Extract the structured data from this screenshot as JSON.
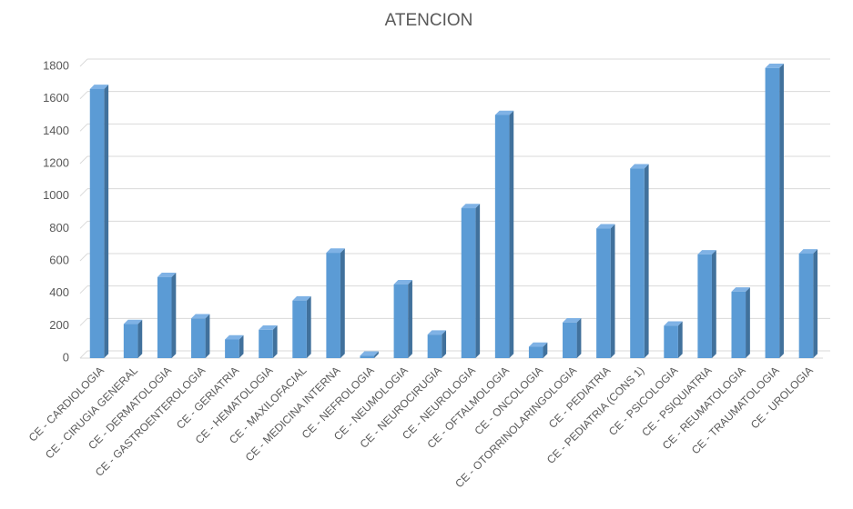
{
  "chart_data": {
    "type": "bar3d",
    "title": "ATENCION",
    "categories": [
      "CE - CARDIOLOGIA",
      "CE - CIRUGIA GENERAL",
      "CE - DERMATOLOGIA",
      "CE - GASTROENTEROLOGIA",
      "CE - GERIATRIA",
      "CE - HEMATOLOGIA",
      "CE - MAXILOFACIAL",
      "CE - MEDICINA INTERNA",
      "CE - NEFROLOGIA",
      "CE - NEUMOLOGIA",
      "CE - NEUROCIRUGIA",
      "CE - NEUROLOGIA",
      "CE - OFTALMOLOGIA",
      "CE - ONCOLOGIA",
      "CE - OTORRINOLARINGOLOGIA",
      "CE - PEDIATRIA",
      "CE - PEDIATRIA (CONS 1)",
      "CE - PSICOLOGIA",
      "CE - PSIQUIATRIA",
      "CE - REUMATOLOGIA",
      "CE - TRAUMATOLOGIA",
      "CE - UROLOGIA"
    ],
    "values": [
      1660,
      210,
      500,
      245,
      115,
      175,
      355,
      650,
      15,
      455,
      145,
      925,
      1500,
      70,
      220,
      800,
      1170,
      200,
      640,
      410,
      1790,
      645
    ],
    "color": "#5b9bd5",
    "ylim": [
      0,
      1800
    ],
    "yticks": [
      0,
      200,
      400,
      600,
      800,
      1000,
      1200,
      1400,
      1600,
      1800
    ],
    "grid": true
  }
}
